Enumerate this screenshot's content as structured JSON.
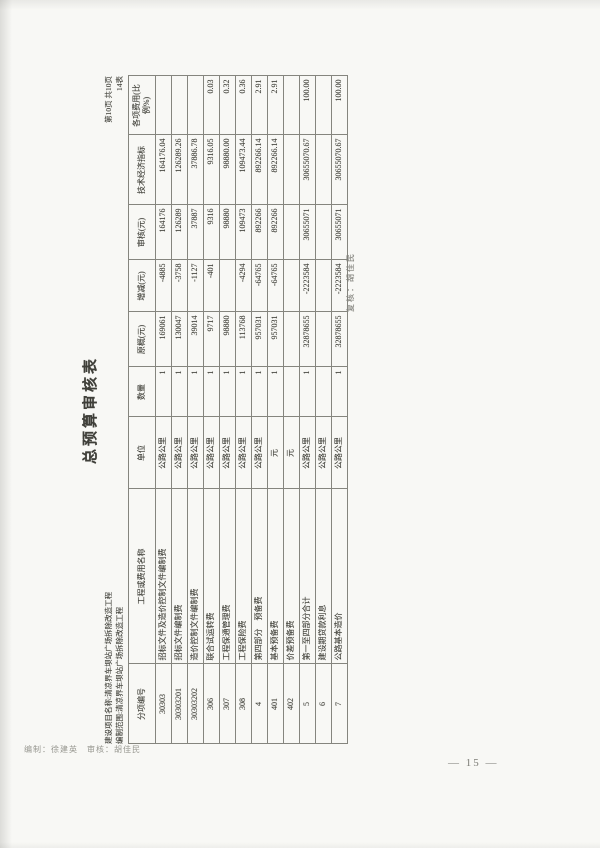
{
  "sheet": {
    "title": "总预算审核表",
    "project_line": "建设项目名称:清凉界车坝站广场拆除改造工程",
    "scope_line": "编制范围:清凉界车坝站广场拆除改造工程",
    "page_info": "第10页  共10页",
    "table_no": "14表",
    "reviewer_sig": "复核：胡佳民",
    "footer_sig": "编制：徐建英　审核：胡佳民",
    "page_number": "— 15 —"
  },
  "table": {
    "columns": [
      "分项编号",
      "工程或费用名称",
      "单位",
      "数量",
      "原概(元)",
      "增减(元)",
      "审核(元)",
      "技术经济指标",
      "各项费用(比例%)"
    ],
    "rows": [
      [
        "30303",
        "招标文件及造价控制文件编制费",
        "公路公里",
        "1",
        "169061",
        "-4885",
        "164176",
        "164176.04",
        ""
      ],
      [
        "30303201",
        "招标文件编制费",
        "公路公里",
        "1",
        "130047",
        "-3758",
        "126289",
        "126289.26",
        ""
      ],
      [
        "30303202",
        "造价控制文件编制费",
        "公路公里",
        "1",
        "39014",
        "-1127",
        "37887",
        "37886.78",
        ""
      ],
      [
        "306",
        "联合试运转费",
        "公路公里",
        "1",
        "9717",
        "-401",
        "9316",
        "9316.05",
        "0.03"
      ],
      [
        "307",
        "工程保通管理费",
        "公路公里",
        "1",
        "98880",
        "",
        "98880",
        "98880.00",
        "0.32"
      ],
      [
        "308",
        "工程保险费",
        "公路公里",
        "1",
        "113768",
        "-4294",
        "109473",
        "109473.44",
        "0.36"
      ],
      [
        "4",
        "第四部分　预备费",
        "公路公里",
        "1",
        "957031",
        "-64765",
        "892266",
        "892266.14",
        "2.91"
      ],
      [
        "401",
        "基本预备费",
        "元",
        "1",
        "957031",
        "-64765",
        "892266",
        "892266.14",
        "2.91"
      ],
      [
        "402",
        "价差预备费",
        "元",
        "",
        "",
        "",
        "",
        "",
        ""
      ],
      [
        "5",
        "第一至四部分合计",
        "公路公里",
        "1",
        "32878655",
        "-2223584",
        "30655071",
        "30655070.67",
        "100.00"
      ],
      [
        "6",
        "建设期贷款利息",
        "公路公里",
        "",
        "",
        "",
        "",
        "",
        ""
      ],
      [
        "7",
        "公路基本造价",
        "公路公里",
        "1",
        "32878655",
        "-2223584",
        "30655071",
        "30655070.67",
        "100.00"
      ]
    ]
  }
}
